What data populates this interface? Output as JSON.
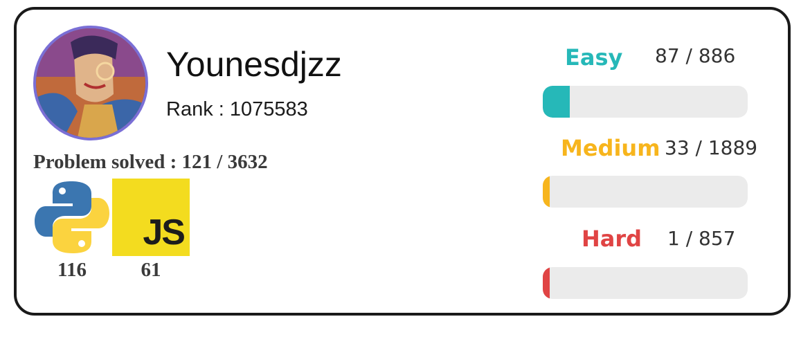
{
  "profile": {
    "username": "Younesdjzz",
    "rank_text": "Rank : 1075583",
    "problems_solved_text": "Problem solved : 121 / 3632"
  },
  "languages": [
    {
      "name": "python",
      "icon": "python-icon",
      "count": "116"
    },
    {
      "name": "javascript",
      "icon": "js-icon",
      "label": "JS",
      "count": "61"
    }
  ],
  "difficulty": [
    {
      "label": "Easy",
      "value_text": "87 / 886",
      "solved": 87,
      "total": 886,
      "color": "#26b8b8"
    },
    {
      "label": "Medium",
      "value_text": "33 / 1889",
      "solved": 33,
      "total": 1889,
      "color": "#f7b51d"
    },
    {
      "label": "Hard",
      "value_text": "1 / 857",
      "solved": 1,
      "total": 857,
      "color": "#e04444"
    }
  ],
  "colors": {
    "track": "#ebebeb",
    "avatar_border": "#7a6fd6",
    "js_bg": "#f3dc1f"
  }
}
